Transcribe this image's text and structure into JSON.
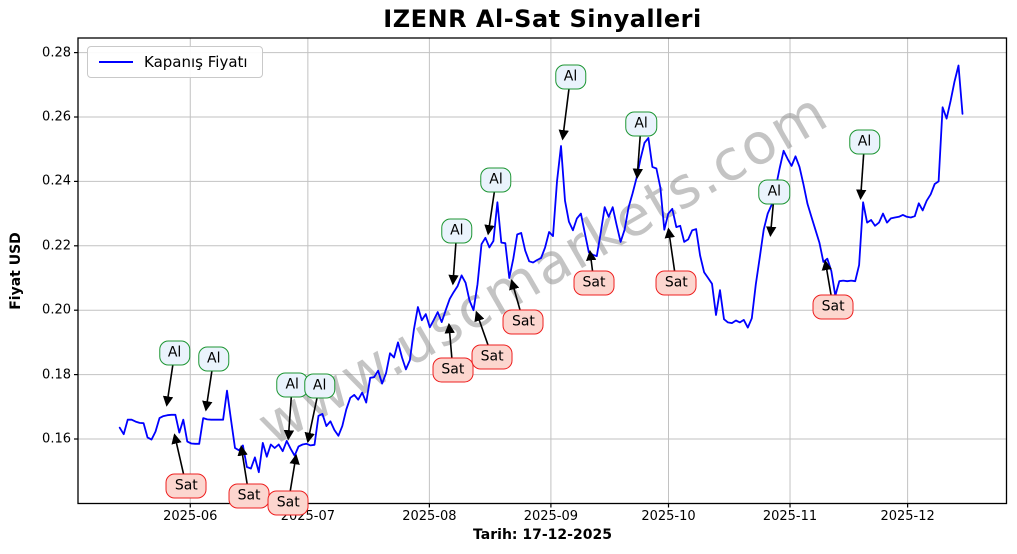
{
  "title": "IZENR Al-Sat Sinyalleri",
  "watermark": "www.uscmarkets.com",
  "legend": {
    "label": "Kapanış Fiyatı"
  },
  "axes": {
    "ylabel": "Fiyat USD",
    "xlabel": "Tarih: 17-12-2025",
    "yticks": [
      {
        "label": "0.16",
        "value": 0.16
      },
      {
        "label": "0.18",
        "value": 0.18
      },
      {
        "label": "0.20",
        "value": 0.2
      },
      {
        "label": "0.22",
        "value": 0.22
      },
      {
        "label": "0.24",
        "value": 0.24
      },
      {
        "label": "0.26",
        "value": 0.26
      },
      {
        "label": "0.28",
        "value": 0.28
      }
    ],
    "xticks": [
      {
        "label": "2025-06",
        "date": "2025-06-01"
      },
      {
        "label": "2025-07",
        "date": "2025-07-01"
      },
      {
        "label": "2025-08",
        "date": "2025-08-01"
      },
      {
        "label": "2025-09",
        "date": "2025-09-01"
      },
      {
        "label": "2025-10",
        "date": "2025-10-01"
      },
      {
        "label": "2025-11",
        "date": "2025-11-01"
      },
      {
        "label": "2025-12",
        "date": "2025-12-01"
      }
    ]
  },
  "colors": {
    "line": "#0000ff",
    "grid": "#c2c2c2",
    "axis": "#000000",
    "watermark": "#8a8a8a",
    "buy_border": "#1d9633",
    "buy_fill": "#eaf3fc",
    "sell_border": "#ee2020",
    "sell_fill": "#fcd6cf"
  },
  "chart_data": {
    "type": "line",
    "series_name": "Kapanış Fiyatı",
    "start_date": "2025-05-14",
    "end_date": "2025-12-15",
    "ylim": [
      0.1398,
      0.2853
    ],
    "grid": true,
    "legend_position": "upper-left",
    "values": [
      0.1635,
      0.1615,
      0.166,
      0.166,
      0.1654,
      0.165,
      0.1649,
      0.1605,
      0.1598,
      0.1623,
      0.1665,
      0.1671,
      0.1674,
      0.1675,
      0.1675,
      0.162,
      0.166,
      0.1592,
      0.1586,
      0.1585,
      0.1585,
      0.1665,
      0.1661,
      0.166,
      0.166,
      0.166,
      0.166,
      0.175,
      0.166,
      0.1572,
      0.1565,
      0.158,
      0.1513,
      0.1508,
      0.1543,
      0.1497,
      0.1588,
      0.1545,
      0.1583,
      0.1572,
      0.1583,
      0.1562,
      0.1594,
      0.157,
      0.1548,
      0.1577,
      0.1583,
      0.1585,
      0.158,
      0.1582,
      0.1672,
      0.1678,
      0.164,
      0.1655,
      0.1628,
      0.161,
      0.164,
      0.1692,
      0.1728,
      0.1737,
      0.1722,
      0.1744,
      0.1713,
      0.179,
      0.1792,
      0.1812,
      0.1772,
      0.1805,
      0.1866,
      0.1853,
      0.19,
      0.1853,
      0.1816,
      0.1845,
      0.194,
      0.201,
      0.1969,
      0.1988,
      0.1947,
      0.197,
      0.1994,
      0.1963,
      0.2,
      0.2035,
      0.2056,
      0.2075,
      0.2108,
      0.2085,
      0.203,
      0.2,
      0.208,
      0.2205,
      0.2225,
      0.2195,
      0.2215,
      0.2335,
      0.221,
      0.2208,
      0.21,
      0.216,
      0.2235,
      0.224,
      0.2185,
      0.2152,
      0.2148,
      0.2156,
      0.2162,
      0.2195,
      0.2243,
      0.223,
      0.24,
      0.251,
      0.234,
      0.2275,
      0.2248,
      0.2285,
      0.23,
      0.224,
      0.218,
      0.2172,
      0.2168,
      0.224,
      0.232,
      0.229,
      0.232,
      0.2265,
      0.2212,
      0.225,
      0.232,
      0.2362,
      0.241,
      0.247,
      0.252,
      0.2535,
      0.2445,
      0.244,
      0.238,
      0.225,
      0.23,
      0.2315,
      0.2258,
      0.2262,
      0.2212,
      0.222,
      0.2248,
      0.2252,
      0.217,
      0.2118,
      0.21,
      0.2082,
      0.1985,
      0.2062,
      0.1972,
      0.1962,
      0.196,
      0.1968,
      0.1962,
      0.197,
      0.1946,
      0.1975,
      0.208,
      0.2165,
      0.225,
      0.23,
      0.2328,
      0.238,
      0.244,
      0.2495,
      0.247,
      0.2448,
      0.2478,
      0.2445,
      0.239,
      0.233,
      0.229,
      0.225,
      0.221,
      0.215,
      0.216,
      0.2122,
      0.2045,
      0.209,
      0.2092,
      0.209,
      0.2092,
      0.209,
      0.214,
      0.2335,
      0.2272,
      0.228,
      0.2262,
      0.2272,
      0.23,
      0.2272,
      0.2285,
      0.2288,
      0.229,
      0.2296,
      0.229,
      0.2288,
      0.2292,
      0.2332,
      0.231,
      0.234,
      0.236,
      0.2392,
      0.24,
      0.263,
      0.2595,
      0.265,
      0.271,
      0.276,
      0.261
    ],
    "annotations": [
      {
        "label": "Al",
        "kind": "buy",
        "date": "2025-05-28",
        "price": 0.1866,
        "target_date": "2025-05-26",
        "target_price": 0.1705
      },
      {
        "label": "Al",
        "kind": "buy",
        "date": "2025-06-07",
        "price": 0.185,
        "target_date": "2025-06-05",
        "target_price": 0.169
      },
      {
        "label": "Al",
        "kind": "buy",
        "date": "2025-06-27",
        "price": 0.1769,
        "target_date": "2025-06-26",
        "target_price": 0.16
      },
      {
        "label": "Al",
        "kind": "buy",
        "date": "2025-07-04",
        "price": 0.1766,
        "target_date": "2025-07-01",
        "target_price": 0.1592
      },
      {
        "label": "Al",
        "kind": "buy",
        "date": "2025-08-08",
        "price": 0.2247,
        "target_date": "2025-08-07",
        "target_price": 0.2082
      },
      {
        "label": "Al",
        "kind": "buy",
        "date": "2025-08-18",
        "price": 0.2403,
        "target_date": "2025-08-16",
        "target_price": 0.2237
      },
      {
        "label": "Al",
        "kind": "buy",
        "date": "2025-09-06",
        "price": 0.2725,
        "target_date": "2025-09-04",
        "target_price": 0.2532
      },
      {
        "label": "Al",
        "kind": "buy",
        "date": "2025-09-24",
        "price": 0.2578,
        "target_date": "2025-09-23",
        "target_price": 0.2412
      },
      {
        "label": "Al",
        "kind": "buy",
        "date": "2025-10-28",
        "price": 0.2366,
        "target_date": "2025-10-27",
        "target_price": 0.2232
      },
      {
        "label": "Al",
        "kind": "buy",
        "date": "2025-11-20",
        "price": 0.2522,
        "target_date": "2025-11-19",
        "target_price": 0.2347
      },
      {
        "label": "Sat",
        "kind": "sell",
        "date": "2025-05-31",
        "price": 0.1453,
        "target_date": "2025-05-28",
        "target_price": 0.1613
      },
      {
        "label": "Sat",
        "kind": "sell",
        "date": "2025-06-16",
        "price": 0.1423,
        "target_date": "2025-06-14",
        "target_price": 0.1576
      },
      {
        "label": "Sat",
        "kind": "sell",
        "date": "2025-06-26",
        "price": 0.1401,
        "target_date": "2025-06-28",
        "target_price": 0.1549
      },
      {
        "label": "Sat",
        "kind": "sell",
        "date": "2025-08-07",
        "price": 0.1813,
        "target_date": "2025-08-06",
        "target_price": 0.1956
      },
      {
        "label": "Sat",
        "kind": "sell",
        "date": "2025-08-17",
        "price": 0.1856,
        "target_date": "2025-08-13",
        "target_price": 0.1994
      },
      {
        "label": "Sat",
        "kind": "sell",
        "date": "2025-08-25",
        "price": 0.1963,
        "target_date": "2025-08-22",
        "target_price": 0.2092
      },
      {
        "label": "Sat",
        "kind": "sell",
        "date": "2025-09-12",
        "price": 0.2084,
        "target_date": "2025-09-11",
        "target_price": 0.2182
      },
      {
        "label": "Sat",
        "kind": "sell",
        "date": "2025-10-03",
        "price": 0.2084,
        "target_date": "2025-10-01",
        "target_price": 0.2252
      },
      {
        "label": "Sat",
        "kind": "sell",
        "date": "2025-11-12",
        "price": 0.2009,
        "target_date": "2025-11-10",
        "target_price": 0.2152
      }
    ]
  }
}
